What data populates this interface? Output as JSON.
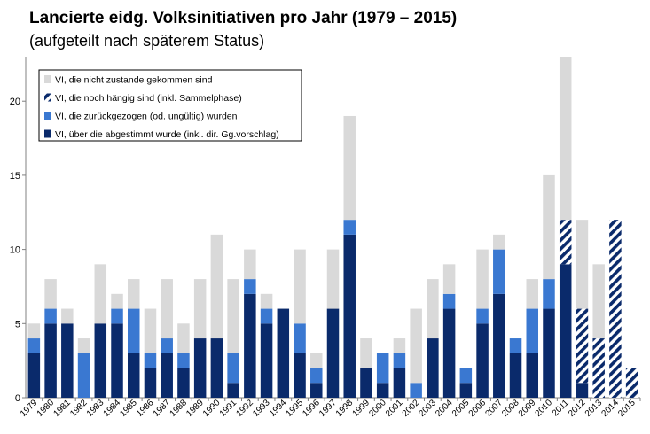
{
  "chart_data": {
    "type": "bar",
    "stacked": true,
    "title": "Lancierte eidg. Volksinitiativen pro Jahr (1979 – 2015)",
    "subtitle": "(aufgeteilt nach späterem Status)",
    "xlabel": "",
    "ylabel": "",
    "ylim": [
      0,
      23
    ],
    "yticks": [
      0,
      5,
      10,
      15,
      20
    ],
    "grid": false,
    "legend_position": "top-left",
    "categories": [
      "1979",
      "1980",
      "1981",
      "1982",
      "1983",
      "1984",
      "1985",
      "1986",
      "1987",
      "1988",
      "1989",
      "1990",
      "1991",
      "1992",
      "1993",
      "1994",
      "1995",
      "1996",
      "1997",
      "1998",
      "1999",
      "2000",
      "2001",
      "2002",
      "2003",
      "2004",
      "2005",
      "2006",
      "2007",
      "2008",
      "2009",
      "2010",
      "2011",
      "2012",
      "2013",
      "2014",
      "2015"
    ],
    "series": [
      {
        "name": "VI, über die abgestimmt wurde (inkl. dir. Gg.vorschlag)",
        "color": "#0a2a6b",
        "pattern": "solid",
        "values": [
          3,
          5,
          5,
          0,
          5,
          5,
          3,
          2,
          3,
          2,
          4,
          4,
          1,
          7,
          5,
          6,
          3,
          1,
          6,
          11,
          2,
          1,
          2,
          0,
          4,
          6,
          1,
          5,
          7,
          3,
          3,
          6,
          9,
          1,
          0,
          0,
          0
        ]
      },
      {
        "name": "VI, die zurückgezogen (od. ungültig) wurden",
        "color": "#3a78d1",
        "pattern": "solid",
        "values": [
          1,
          1,
          0,
          3,
          0,
          1,
          3,
          1,
          1,
          1,
          0,
          0,
          2,
          1,
          1,
          0,
          2,
          1,
          0,
          1,
          0,
          2,
          1,
          1,
          0,
          1,
          1,
          1,
          3,
          1,
          3,
          2,
          0,
          0,
          0,
          0,
          0
        ]
      },
      {
        "name": "VI, die noch hängig sind (inkl. Sammelphase)",
        "color": "#0a2a6b",
        "pattern": "hatch",
        "values": [
          0,
          0,
          0,
          0,
          0,
          0,
          0,
          0,
          0,
          0,
          0,
          0,
          0,
          0,
          0,
          0,
          0,
          0,
          0,
          0,
          0,
          0,
          0,
          0,
          0,
          0,
          0,
          0,
          0,
          0,
          0,
          0,
          3,
          5,
          4,
          12,
          2
        ]
      },
      {
        "name": "VI, die nicht zustande gekommen sind",
        "color": "#d9d9d9",
        "pattern": "solid",
        "values": [
          1,
          2,
          1,
          1,
          4,
          1,
          2,
          3,
          4,
          2,
          4,
          7,
          5,
          2,
          1,
          0,
          5,
          1,
          4,
          7,
          2,
          0,
          1,
          5,
          4,
          2,
          0,
          4,
          1,
          0,
          2,
          7,
          11,
          6,
          5,
          0,
          0
        ]
      }
    ],
    "legend_order": [
      3,
      2,
      1,
      0
    ]
  }
}
